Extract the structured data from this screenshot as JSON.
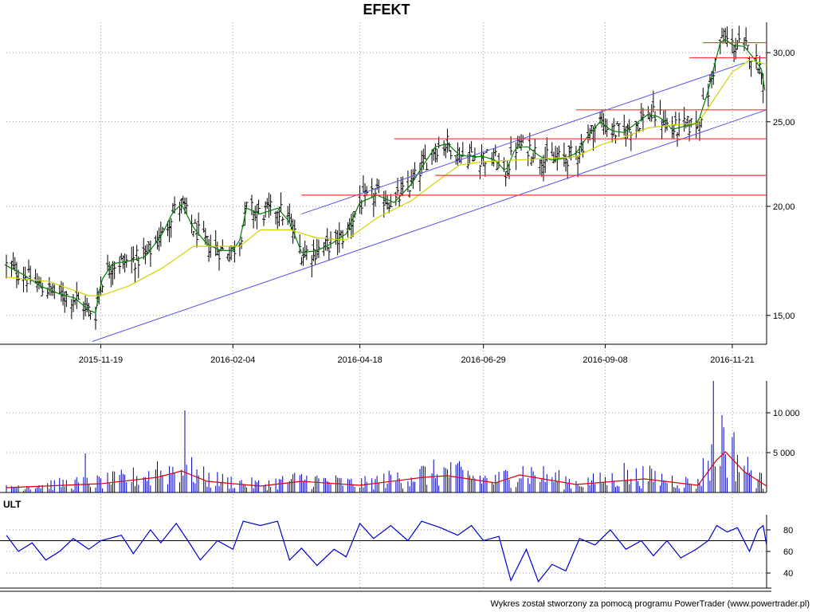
{
  "title": "EFEKT",
  "footer": "Wykres został stworzony za pomocą programu PowerTrader (www.powertrader.pl)",
  "colors": {
    "price_bars": "#000000",
    "ma_short": "#008000",
    "ma_long": "#d2d200",
    "trend_channel": "#5555ee",
    "horizontal_levels": "#ff3333",
    "volume_bars": "#0000bb",
    "volume_ma": "#dd0000",
    "ult_line": "#0000cc",
    "ult_level": "#000000",
    "grid": "#9a9a9a"
  },
  "chart_data": [
    {
      "type": "bar",
      "subtype": "ohlc",
      "panel": "price",
      "title": "EFEKT",
      "x_tick_labels": [
        "2015-11-19",
        "2016-02-04",
        "2016-04-18",
        "2016-06-29",
        "2016-09-08",
        "2016-11-21"
      ],
      "y_tick_labels": [
        "15,00",
        "20,00",
        "25,00",
        "30,00"
      ],
      "y_scale": "log",
      "ylim": [
        13.9,
        32.5
      ],
      "x_range": [
        "2015-09-25",
        "2016-12-11"
      ],
      "grid": true,
      "series": [
        {
          "kind": "close_path",
          "points": [
            [
              "2015-09-25",
              17.1
            ],
            [
              "2015-10-05",
              16.7
            ],
            [
              "2015-10-15",
              16.2
            ],
            [
              "2015-10-25",
              15.9
            ],
            [
              "2015-11-04",
              15.7
            ],
            [
              "2015-11-12",
              15.2
            ],
            [
              "2015-11-16",
              15.1
            ],
            [
              "2015-11-19",
              16.4
            ],
            [
              "2015-11-26",
              17.2
            ],
            [
              "2015-12-05",
              17.3
            ],
            [
              "2015-12-15",
              17.5
            ],
            [
              "2015-12-25",
              18.6
            ],
            [
              "2015-12-31",
              19.7
            ],
            [
              "2016-01-05",
              20.1
            ],
            [
              "2016-01-12",
              18.9
            ],
            [
              "2016-01-20",
              18.1
            ],
            [
              "2016-01-28",
              17.8
            ],
            [
              "2016-02-04",
              17.8
            ],
            [
              "2016-02-08",
              18.3
            ],
            [
              "2016-02-12",
              19.9
            ],
            [
              "2016-02-20",
              19.6
            ],
            [
              "2016-03-01",
              19.9
            ],
            [
              "2016-03-08",
              19.2
            ],
            [
              "2016-03-15",
              17.7
            ],
            [
              "2016-03-24",
              17.8
            ],
            [
              "2016-04-01",
              18.1
            ],
            [
              "2016-04-10",
              18.6
            ],
            [
              "2016-04-18",
              20.2
            ],
            [
              "2016-04-28",
              20.6
            ],
            [
              "2016-05-08",
              20.2
            ],
            [
              "2016-05-18",
              21.2
            ],
            [
              "2016-05-25",
              22.3
            ],
            [
              "2016-06-01",
              23.4
            ],
            [
              "2016-06-08",
              23.6
            ],
            [
              "2016-06-15",
              22.9
            ],
            [
              "2016-06-22",
              22.8
            ],
            [
              "2016-06-29",
              22.8
            ],
            [
              "2016-07-06",
              22.6
            ],
            [
              "2016-07-12",
              21.9
            ],
            [
              "2016-07-18",
              23.4
            ],
            [
              "2016-07-25",
              23.4
            ],
            [
              "2016-08-01",
              22.8
            ],
            [
              "2016-08-08",
              22.6
            ],
            [
              "2016-08-15",
              22.7
            ],
            [
              "2016-08-22",
              23.0
            ],
            [
              "2016-08-29",
              24.1
            ],
            [
              "2016-09-05",
              25.0
            ],
            [
              "2016-09-12",
              24.4
            ],
            [
              "2016-09-19",
              24.3
            ],
            [
              "2016-09-26",
              24.9
            ],
            [
              "2016-10-03",
              25.5
            ],
            [
              "2016-10-10",
              25.3
            ],
            [
              "2016-10-17",
              24.5
            ],
            [
              "2016-10-24",
              24.7
            ],
            [
              "2016-11-01",
              24.9
            ],
            [
              "2016-11-07",
              27.1
            ],
            [
              "2016-11-14",
              30.8
            ],
            [
              "2016-11-17",
              31.1
            ],
            [
              "2016-11-21",
              30.6
            ],
            [
              "2016-11-28",
              30.5
            ],
            [
              "2016-12-05",
              29.3
            ],
            [
              "2016-12-08",
              28.7
            ],
            [
              "2016-12-11",
              26.4
            ]
          ]
        },
        {
          "kind": "ma_long",
          "points": [
            [
              "2015-09-25",
              16.6
            ],
            [
              "2015-10-20",
              16.4
            ],
            [
              "2015-11-12",
              15.8
            ],
            [
              "2015-11-19",
              15.8
            ],
            [
              "2015-12-05",
              16.2
            ],
            [
              "2015-12-25",
              17.0
            ],
            [
              "2016-01-12",
              18.0
            ],
            [
              "2016-01-28",
              18.0
            ],
            [
              "2016-02-08",
              18.0
            ],
            [
              "2016-02-20",
              18.8
            ],
            [
              "2016-03-08",
              18.8
            ],
            [
              "2016-03-24",
              18.4
            ],
            [
              "2016-04-10",
              18.3
            ],
            [
              "2016-04-28",
              19.4
            ],
            [
              "2016-05-18",
              20.3
            ],
            [
              "2016-06-01",
              21.3
            ],
            [
              "2016-06-15",
              22.3
            ],
            [
              "2016-06-29",
              22.5
            ],
            [
              "2016-07-18",
              22.6
            ],
            [
              "2016-08-08",
              22.7
            ],
            [
              "2016-08-22",
              22.8
            ],
            [
              "2016-09-05",
              23.5
            ],
            [
              "2016-09-19",
              24.0
            ],
            [
              "2016-10-03",
              24.6
            ],
            [
              "2016-10-17",
              24.8
            ],
            [
              "2016-11-01",
              24.9
            ],
            [
              "2016-11-14",
              27.2
            ],
            [
              "2016-11-21",
              28.5
            ],
            [
              "2016-12-01",
              29.4
            ],
            [
              "2016-12-11",
              29.1
            ]
          ]
        },
        {
          "kind": "trend_line",
          "points": [
            [
              "2015-11-14",
              14.0
            ],
            [
              "2016-12-11",
              25.8
            ]
          ]
        },
        {
          "kind": "trend_line",
          "points": [
            [
              "2016-03-15",
              19.6
            ],
            [
              "2016-11-28",
              29.2
            ]
          ]
        },
        {
          "kind": "horizontal_level",
          "value": 20.6,
          "from": "2016-03-15",
          "to": "2016-12-11"
        },
        {
          "kind": "horizontal_level",
          "value": 21.7,
          "from": "2016-06-01",
          "to": "2016-12-11"
        },
        {
          "kind": "horizontal_level",
          "value": 23.9,
          "from": "2016-05-08",
          "to": "2016-12-11"
        },
        {
          "kind": "horizontal_level",
          "value": 25.8,
          "from": "2016-08-22",
          "to": "2016-12-11"
        },
        {
          "kind": "horizontal_level",
          "value": 29.6,
          "from": "2016-10-27",
          "to": "2016-12-11"
        },
        {
          "kind": "horizontal_level",
          "value": 30.8,
          "from": "2016-11-04",
          "to": "2016-12-11"
        }
      ]
    },
    {
      "type": "bar",
      "panel": "volume",
      "y_tick_labels": [
        "5 000",
        "10 000"
      ],
      "ylim": [
        0,
        14000
      ],
      "grid": true,
      "spikes": [
        [
          "2015-11-10",
          4900
        ],
        [
          "2015-12-22",
          3900
        ],
        [
          "2016-01-07",
          10300
        ],
        [
          "2016-01-02",
          4300
        ],
        [
          "2016-05-28",
          4800
        ],
        [
          "2016-05-15",
          3800
        ],
        [
          "2016-11-10",
          14000
        ],
        [
          "2016-11-15",
          9700
        ],
        [
          "2016-11-04",
          4300
        ],
        [
          "2016-09-19",
          3700
        ],
        [
          "2016-10-08",
          4600
        ],
        [
          "2016-06-10",
          3800
        ]
      ],
      "ma_points": [
        [
          "2015-09-25",
          600
        ],
        [
          "2015-11-19",
          1100
        ],
        [
          "2015-12-22",
          1900
        ],
        [
          "2016-01-05",
          2700
        ],
        [
          "2016-01-20",
          1400
        ],
        [
          "2016-02-20",
          800
        ],
        [
          "2016-03-15",
          1400
        ],
        [
          "2016-04-18",
          900
        ],
        [
          "2016-05-25",
          1900
        ],
        [
          "2016-06-08",
          2100
        ],
        [
          "2016-07-06",
          1200
        ],
        [
          "2016-07-20",
          2200
        ],
        [
          "2016-08-22",
          1000
        ],
        [
          "2016-10-01",
          1700
        ],
        [
          "2016-11-01",
          900
        ],
        [
          "2016-11-12",
          4100
        ],
        [
          "2016-11-17",
          5100
        ],
        [
          "2016-11-28",
          2600
        ],
        [
          "2016-12-11",
          800
        ]
      ]
    },
    {
      "type": "line",
      "panel": "ULT",
      "title": "ULT",
      "y_tick_labels": [
        "40",
        "60",
        "80"
      ],
      "ylim": [
        26,
        94
      ],
      "reference_level": 70,
      "grid": true,
      "points": [
        [
          "2015-09-25",
          75
        ],
        [
          "2015-10-02",
          60
        ],
        [
          "2015-10-10",
          68
        ],
        [
          "2015-10-18",
          52
        ],
        [
          "2015-10-26",
          60
        ],
        [
          "2015-11-03",
          72
        ],
        [
          "2015-11-12",
          62
        ],
        [
          "2015-11-19",
          70
        ],
        [
          "2015-12-01",
          75
        ],
        [
          "2015-12-08",
          58
        ],
        [
          "2015-12-18",
          80
        ],
        [
          "2015-12-24",
          68
        ],
        [
          "2016-01-02",
          86
        ],
        [
          "2016-01-10",
          67
        ],
        [
          "2016-01-16",
          52
        ],
        [
          "2016-01-26",
          70
        ],
        [
          "2016-02-04",
          62
        ],
        [
          "2016-02-10",
          88
        ],
        [
          "2016-02-20",
          84
        ],
        [
          "2016-03-01",
          88
        ],
        [
          "2016-03-08",
          52
        ],
        [
          "2016-03-15",
          63
        ],
        [
          "2016-03-24",
          47
        ],
        [
          "2016-04-03",
          62
        ],
        [
          "2016-04-10",
          55
        ],
        [
          "2016-04-18",
          86
        ],
        [
          "2016-04-26",
          72
        ],
        [
          "2016-05-06",
          84
        ],
        [
          "2016-05-16",
          70
        ],
        [
          "2016-05-24",
          88
        ],
        [
          "2016-06-04",
          82
        ],
        [
          "2016-06-14",
          75
        ],
        [
          "2016-06-22",
          84
        ],
        [
          "2016-06-29",
          70
        ],
        [
          "2016-07-08",
          74
        ],
        [
          "2016-07-15",
          33
        ],
        [
          "2016-07-24",
          62
        ],
        [
          "2016-07-31",
          32
        ],
        [
          "2016-08-08",
          48
        ],
        [
          "2016-08-16",
          42
        ],
        [
          "2016-08-24",
          72
        ],
        [
          "2016-09-02",
          66
        ],
        [
          "2016-09-11",
          80
        ],
        [
          "2016-09-20",
          62
        ],
        [
          "2016-09-29",
          70
        ],
        [
          "2016-10-06",
          56
        ],
        [
          "2016-10-14",
          70
        ],
        [
          "2016-10-22",
          54
        ],
        [
          "2016-10-31",
          62
        ],
        [
          "2016-11-07",
          70
        ],
        [
          "2016-11-12",
          84
        ],
        [
          "2016-11-18",
          78
        ],
        [
          "2016-11-24",
          82
        ],
        [
          "2016-12-01",
          60
        ],
        [
          "2016-12-06",
          80
        ],
        [
          "2016-12-09",
          84
        ],
        [
          "2016-12-11",
          66
        ]
      ]
    }
  ]
}
